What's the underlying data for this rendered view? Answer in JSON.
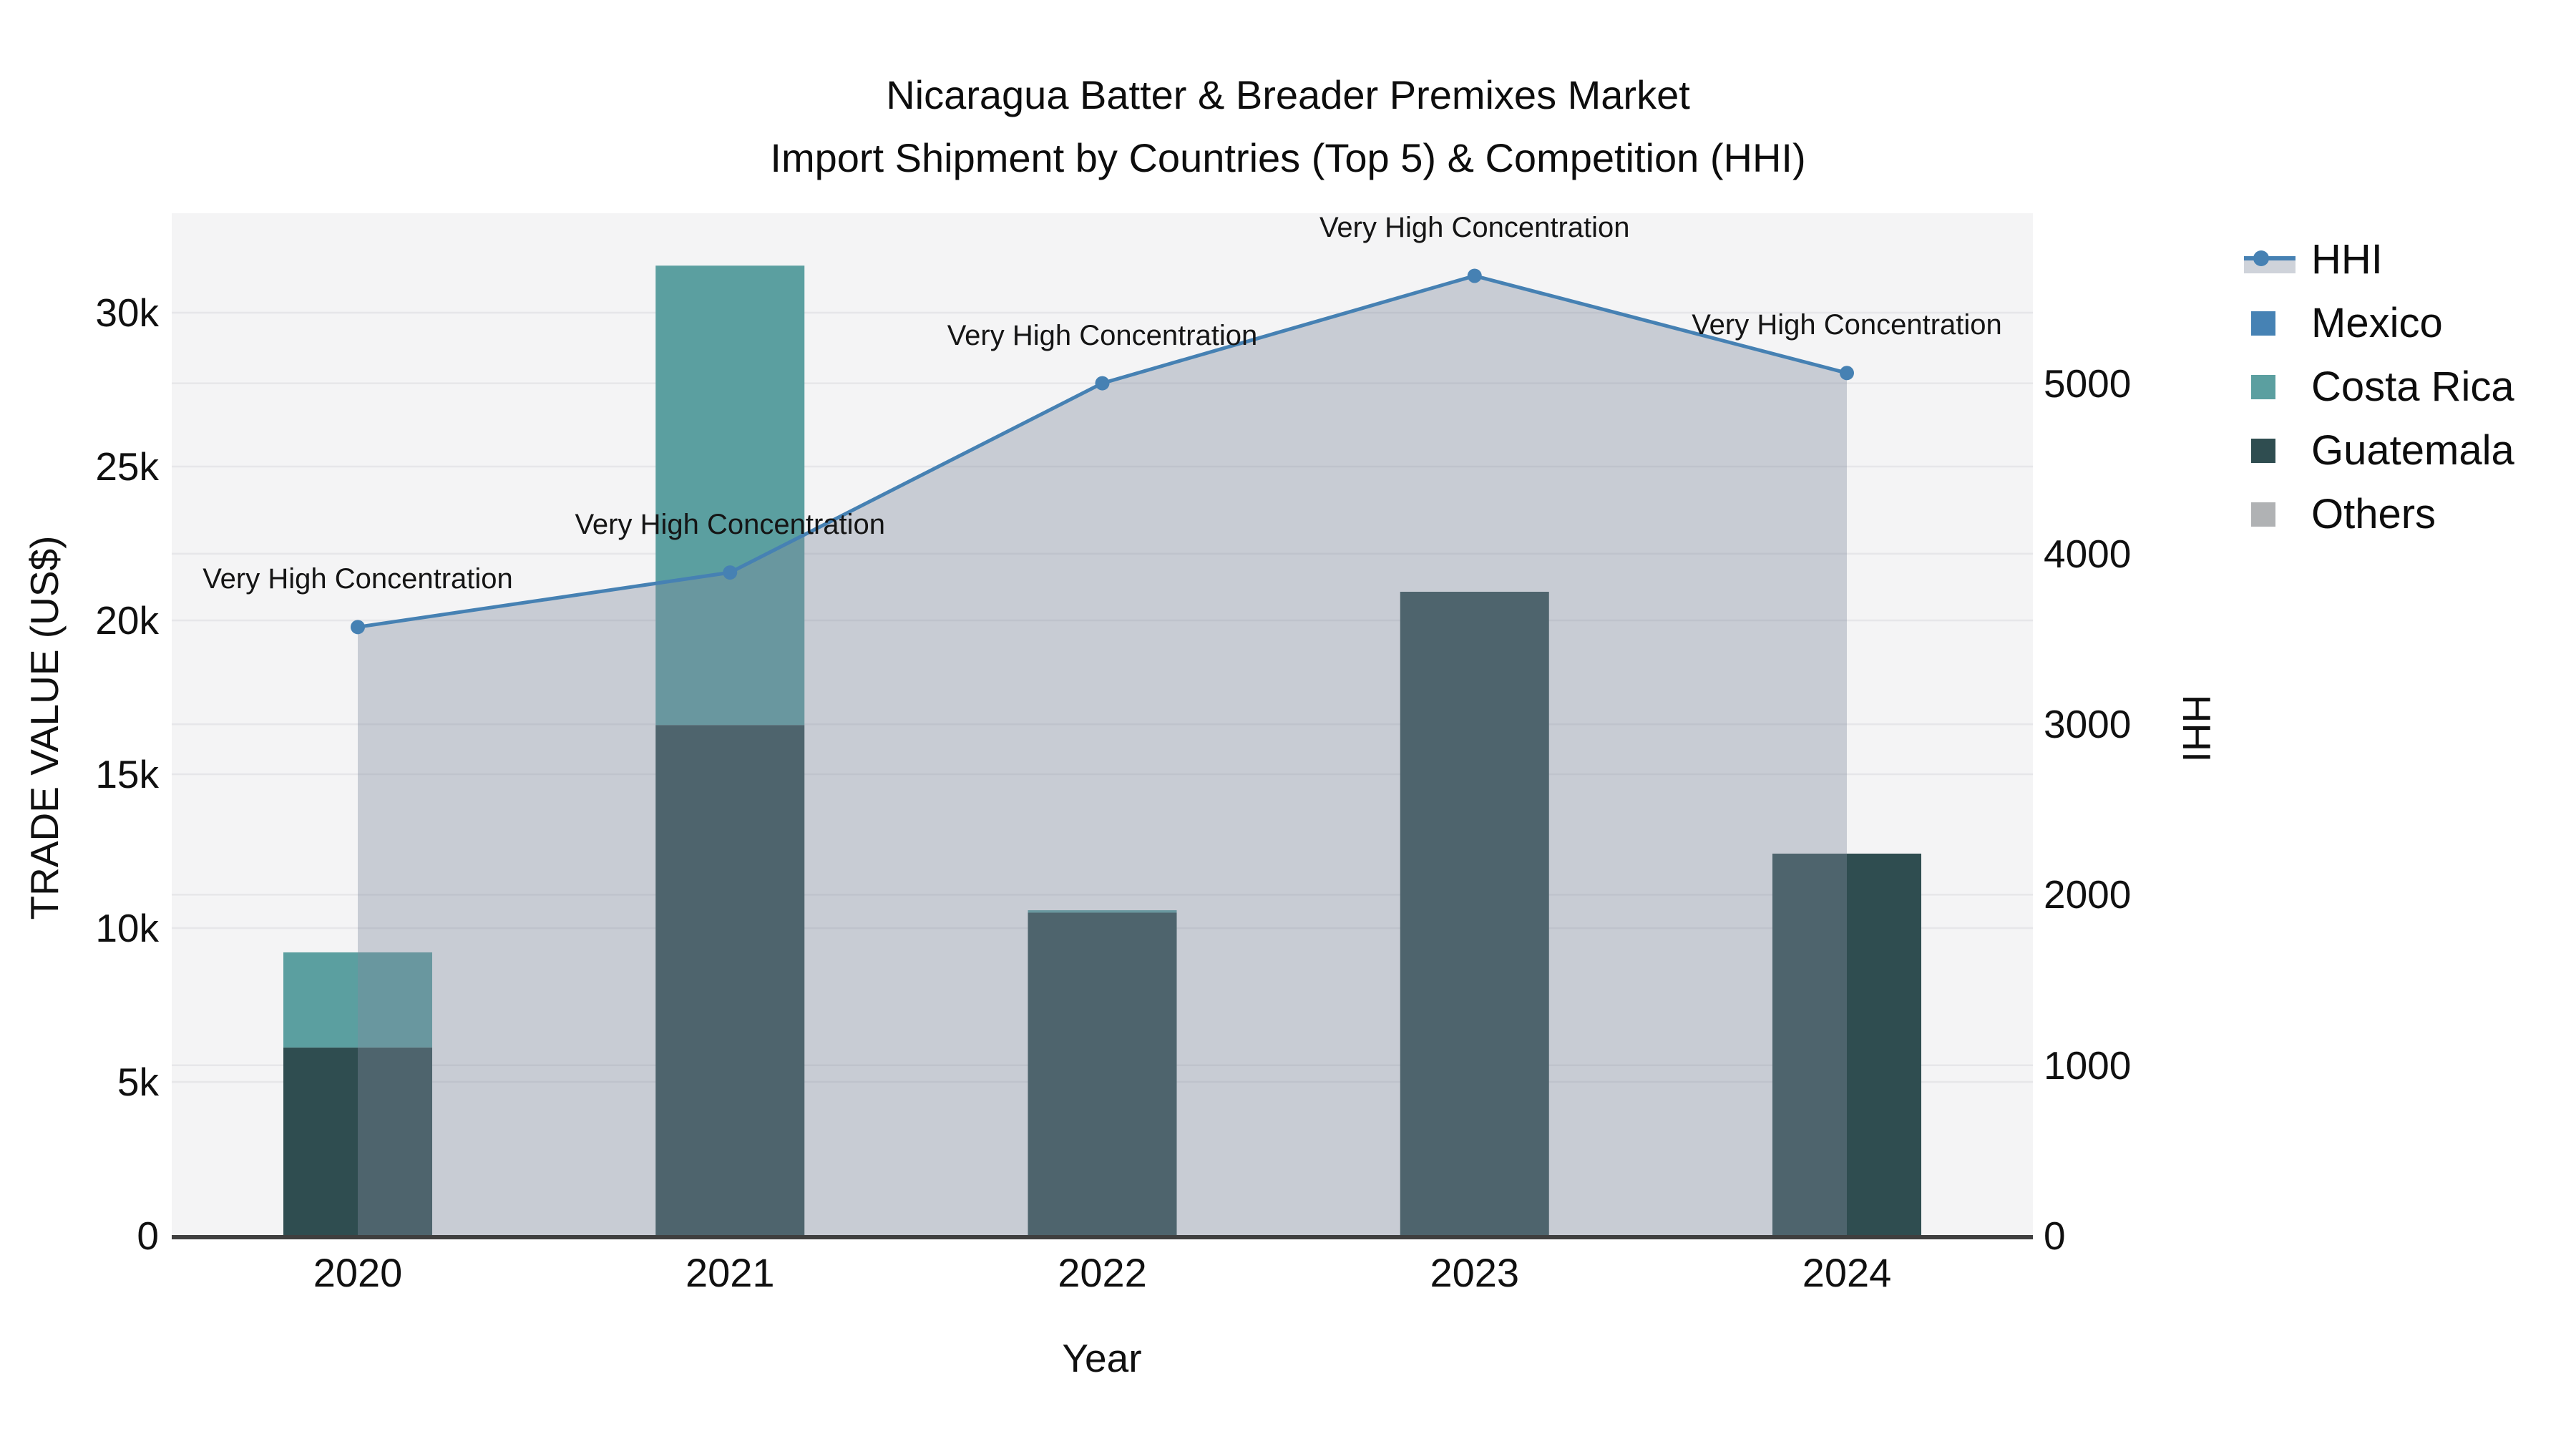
{
  "title": {
    "line1": "Nicaragua Batter & Breader Premixes Market",
    "line2": "Import Shipment by Countries (Top 5) & Competition (HHI)"
  },
  "colors": {
    "mexico": "#4682b4",
    "costa_rica": "#5b9fa0",
    "guatemala": "#2f4d50",
    "others": "#b0b2b4",
    "hhi_line": "#4681b3",
    "hhi_area_fill": "rgba(128,139,157,0.38)",
    "plot_background": "#f4f4f5",
    "gridline": "#e6e6e9",
    "axis_line": "#3f3f3f",
    "text": "#111111"
  },
  "chart_data": {
    "type": "combo: stacked bar (left axis) + line with area fill (right axis)",
    "title": "Nicaragua Batter & Breader Premixes Market — Import Shipment by Countries (Top 5) & Competition (HHI)",
    "xlabel": "Year",
    "ylabel_left": "TRADE VALUE (US$)",
    "ylabel_right": "HHI",
    "categories": [
      "2020",
      "2021",
      "2022",
      "2023",
      "2024"
    ],
    "bar_series": [
      {
        "name": "Mexico",
        "color": "#4682b4",
        "values": [
          0,
          0,
          0,
          0,
          0
        ]
      },
      {
        "name": "Costa Rica",
        "color": "#5b9fa0",
        "values": [
          3090,
          14930,
          80,
          0,
          0
        ]
      },
      {
        "name": "Guatemala",
        "color": "#2f4d50",
        "values": [
          6120,
          16600,
          10500,
          20930,
          12420
        ]
      },
      {
        "name": "Others",
        "color": "#b0b2b4",
        "values": [
          0,
          0,
          0,
          0,
          0
        ]
      }
    ],
    "stack_order_bottom_to_top": [
      "Guatemala",
      "Costa Rica",
      "Mexico",
      "Others"
    ],
    "bar_totals": [
      9210,
      31530,
      10580,
      20930,
      12420
    ],
    "line_series": {
      "name": "HHI",
      "values": [
        3570,
        3890,
        5000,
        5630,
        5060
      ]
    },
    "annotations": [
      {
        "x": "2020",
        "text": "Very High Concentration"
      },
      {
        "x": "2021",
        "text": "Very High Concentration"
      },
      {
        "x": "2022",
        "text": "Very High Concentration"
      },
      {
        "x": "2023",
        "text": "Very High Concentration"
      },
      {
        "x": "2024",
        "text": "Very High Concentration"
      }
    ],
    "y_left_ticks": [
      {
        "label": "0",
        "value": 0
      },
      {
        "label": "5k",
        "value": 5000
      },
      {
        "label": "10k",
        "value": 10000
      },
      {
        "label": "15k",
        "value": 15000
      },
      {
        "label": "20k",
        "value": 20000
      },
      {
        "label": "25k",
        "value": 25000
      },
      {
        "label": "30k",
        "value": 30000
      }
    ],
    "y_right_ticks": [
      {
        "label": "0",
        "value": 0
      },
      {
        "label": "1000",
        "value": 1000
      },
      {
        "label": "2000",
        "value": 2000
      },
      {
        "label": "3000",
        "value": 3000
      },
      {
        "label": "4000",
        "value": 4000
      },
      {
        "label": "5000",
        "value": 5000
      }
    ],
    "y_left_range": [
      0,
      33233
    ],
    "y_right_range": [
      0,
      5997
    ],
    "grid": true,
    "legend_position": "right",
    "legend": [
      {
        "label": "HHI",
        "type": "line-marker"
      },
      {
        "label": "Mexico",
        "type": "swatch",
        "color": "#4682b4"
      },
      {
        "label": "Costa Rica",
        "type": "swatch",
        "color": "#5b9fa0"
      },
      {
        "label": "Guatemala",
        "type": "swatch",
        "color": "#2f4d50"
      },
      {
        "label": "Others",
        "type": "swatch",
        "color": "#b0b2b4"
      }
    ]
  }
}
